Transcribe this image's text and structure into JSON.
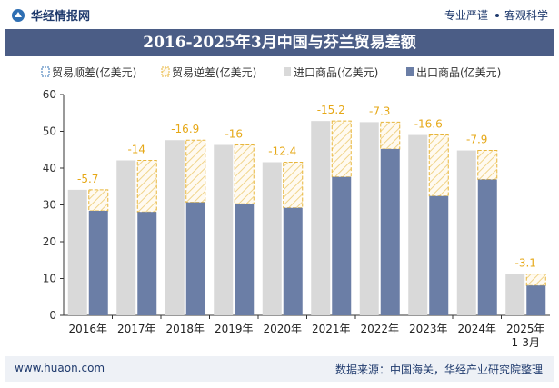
{
  "header": {
    "brand": "华经情报网",
    "tag_left": "专业严谨",
    "tag_right": "客观科学"
  },
  "title": "2016-2025年3月中国与芬兰贸易差额",
  "footer": {
    "website": "www.huaon.com",
    "source": "数据来源：中国海关，华经产业研究院整理"
  },
  "colors": {
    "title_bg": "#4b5d86",
    "import_bar": "#d9d9d9",
    "export_bar": "#6b7ea6",
    "deficit_box": "#e8b63c",
    "label_color": "#e6a817"
  },
  "chart_data": {
    "type": "bar",
    "categories": [
      "2016年",
      "2017年",
      "2018年",
      "2019年",
      "2020年",
      "2021年",
      "2022年",
      "2023年",
      "2024年",
      "2025年\n1-3月"
    ],
    "series": [
      {
        "name": "贸易顺差(亿美元)",
        "values": [
          null,
          null,
          null,
          null,
          null,
          null,
          null,
          null,
          null,
          null
        ]
      },
      {
        "name": "贸易逆差(亿美元)",
        "values": [
          -5.7,
          -14,
          -16.9,
          -16,
          -12.4,
          -15.2,
          -7.3,
          -16.6,
          -7.9,
          -3.1
        ]
      },
      {
        "name": "进口商品(亿美元)",
        "values": [
          34.1,
          42.1,
          47.6,
          46.3,
          41.6,
          52.8,
          52.5,
          49.0,
          44.8,
          11.2
        ]
      },
      {
        "name": "出口商品(亿美元)",
        "values": [
          28.4,
          28.1,
          30.7,
          30.3,
          29.2,
          37.6,
          45.2,
          32.4,
          36.9,
          8.1
        ]
      }
    ],
    "ylim": [
      0,
      60
    ],
    "yticks": [
      0,
      10,
      20,
      30,
      40,
      50,
      60
    ],
    "legend_position": "top",
    "grid": false
  }
}
